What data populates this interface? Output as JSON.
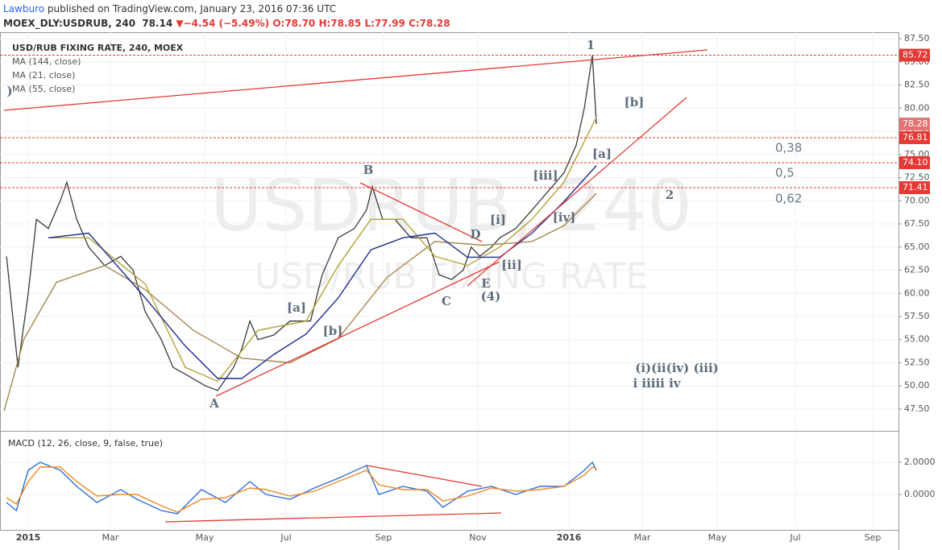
{
  "header": {
    "author": "Lawburo",
    "published": "published on TradingView.com, January 23, 2016 07:36 UTC",
    "symbol": "MOEX_DLY:USDRUB, 240",
    "last": "78.14",
    "arrow": "▼",
    "change": "−4.54 (−5.49%)",
    "ohlc": [
      "O:78.70",
      "H:78.85",
      "L:77.99",
      "C:78.28"
    ]
  },
  "chart_data": [
    {
      "type": "line",
      "title": "USD/RUB FIXING RATE, 240, MOEX",
      "watermark": [
        "USDRUB, 240",
        "USD/RUB FIXING RATE"
      ],
      "ylim": [
        45.15,
        88.2
      ],
      "yticks": [
        {
          "value": 47.5,
          "label": "47.50"
        },
        {
          "value": 50,
          "label": "50.00"
        },
        {
          "value": 52.5,
          "label": "52.50"
        },
        {
          "value": 55,
          "label": "55.00"
        },
        {
          "value": 57.5,
          "label": "57.50"
        },
        {
          "value": 60,
          "label": "60.00"
        },
        {
          "value": 62.5,
          "label": "62.50"
        },
        {
          "value": 65,
          "label": "65.00"
        },
        {
          "value": 67.5,
          "label": "67.50"
        },
        {
          "value": 70,
          "label": "70.00"
        },
        {
          "value": 72.5,
          "label": "72.50"
        },
        {
          "value": 75,
          "label": "75.00"
        },
        {
          "value": 77.5,
          "label": "77.50"
        },
        {
          "value": 80,
          "label": "80.00"
        },
        {
          "value": 82.5,
          "label": "82.50"
        },
        {
          "value": 85,
          "label": "85.00"
        },
        {
          "value": 87.5,
          "label": "87.50"
        }
      ],
      "grid": true,
      "levels": [
        85.72,
        76.81,
        {
          "value": 74.1,
          "label": "74.10"
        },
        71.41
      ],
      "level_color": "#e53935",
      "last_price": 78.28,
      "last_color": "#e57373",
      "fib_labels": [
        "0,38",
        "0,5",
        "0,62"
      ],
      "annotations": [
        "1",
        "[b]",
        "[a]",
        "[iii]",
        "[iv]",
        "2",
        "B",
        "D",
        "[i]",
        "[ii]",
        "E",
        "(4)",
        "C",
        "[a]",
        "[b]",
        "A",
        "(i)(ii(iv) (iii)",
        "i iiiii iv",
        ")"
      ],
      "series": [
        {
          "color": "#3a3a3a",
          "x": [
            -0.53,
            -0.39,
            -0.25,
            0,
            0.2,
            0.49,
            0.78,
            0.94,
            1.18,
            1.47,
            1.86,
            2.22,
            2.48,
            2.74,
            3.08,
            3.33,
            3.68,
            4.02,
            4.32,
            4.71,
            4.91,
            5.11,
            5.31,
            5.7,
            6.08,
            6.33,
            6.5,
            6.74,
            7.07,
            7.4,
            7.65,
            7.77,
            7.98,
            8.24,
            8.58,
            8.92,
            9.18,
            9.44,
            9.69,
            9.86,
            10.04,
            10.3,
            10.48,
            10.83,
            11.19,
            11.54,
            11.89,
            12.2,
            12.42,
            12.64,
            12.75
          ],
          "values": [
            64,
            58,
            52,
            60,
            68,
            67,
            70,
            72,
            68,
            65,
            63,
            64,
            62.5,
            58,
            55,
            52,
            51,
            50,
            49.5,
            52,
            54,
            57,
            55,
            55.5,
            57,
            57,
            57,
            62,
            66,
            67,
            69,
            71.5,
            68,
            68,
            66,
            66,
            62,
            61.5,
            62.5,
            65,
            64,
            65,
            66,
            67,
            69,
            71,
            73,
            76,
            80,
            85.7,
            78.3
          ]
        },
        {
          "name": "MA (144, close)",
          "color": "#a8894f",
          "x": [
            -0.59,
            -0.1,
            0.69,
            1.86,
            2.74,
            3.76,
            4.91,
            6.08,
            7.07,
            8.07,
            9.09,
            10.12,
            11.19,
            11.89,
            12.75
          ],
          "values": [
            47.3,
            55.1,
            61.2,
            63,
            60.4,
            56,
            53,
            52.5,
            55.1,
            61.7,
            65.6,
            65.2,
            65.6,
            67.3,
            70.8
          ]
        },
        {
          "name": "MA (21, close)",
          "color": "#b3a338",
          "x": [
            0.49,
            1.47,
            2.74,
            3.59,
            4.32,
            5.31,
            6.41,
            7.07,
            7.74,
            8.41,
            9.09,
            9.78,
            10.48,
            11.19,
            11.89,
            12.75
          ],
          "values": [
            66,
            66,
            61,
            52,
            50.5,
            56,
            57,
            63,
            68,
            68,
            64,
            63,
            65,
            68,
            72,
            79
          ]
        },
        {
          "name": "MA (55, close)",
          "color": "#1f2d8f",
          "x": [
            0.49,
            1.47,
            2.74,
            3.59,
            4.32,
            4.91,
            5.7,
            6.41,
            7.07,
            7.74,
            8.41,
            9.09,
            9.78,
            10.48,
            11.19,
            11.89,
            12.75
          ],
          "values": [
            66,
            66.5,
            59.5,
            54.3,
            50.8,
            50.8,
            53.4,
            55.6,
            59.5,
            64.7,
            66,
            66.5,
            63.9,
            63.9,
            66.5,
            69.9,
            73.8
          ]
        }
      ]
    },
    {
      "type": "line",
      "title": "MACD (12, 26, close, 9, false, true)",
      "ylim": [
        -2.05,
        3.85
      ],
      "yticks": [
        {
          "value": 2,
          "label": "2.0000"
        },
        {
          "value": 0,
          "label": "0.0000"
        }
      ],
      "xlim": [
        -0.69,
        20.67
      ],
      "xticks": [
        {
          "value": 0,
          "label": "2015"
        },
        {
          "value": 2,
          "label": "Mar"
        },
        {
          "value": 4,
          "label": "May"
        },
        {
          "value": 6,
          "label": "Jul"
        },
        {
          "value": 8,
          "label": "Sep"
        },
        {
          "value": 10,
          "label": "Nov"
        },
        {
          "value": 12,
          "label": "2016"
        },
        {
          "value": 14,
          "label": "Mar"
        },
        {
          "value": 16,
          "label": "May"
        },
        {
          "value": 18,
          "label": "Jul"
        },
        {
          "value": 20,
          "label": "Sep"
        }
      ],
      "grid": true,
      "series": [
        {
          "color": "#2f6fd6",
          "x": [
            -0.53,
            -0.29,
            0,
            0.29,
            0.78,
            1.18,
            1.67,
            2.22,
            2.56,
            3.08,
            3.42,
            3.93,
            4.51,
            5.11,
            5.5,
            6.08,
            6.58,
            7.07,
            7.65,
            7.9,
            8.41,
            8.92,
            9.26,
            9.78,
            10.3,
            10.83,
            11.36,
            11.89,
            12.42,
            12.64,
            12.75
          ],
          "values": [
            -0.5,
            -1,
            1.5,
            2,
            1.5,
            0.5,
            -0.5,
            0.3,
            -0.3,
            -1,
            -1.2,
            0.3,
            -0.5,
            0.8,
            0,
            -0.3,
            0.4,
            1,
            1.8,
            0,
            0.5,
            0.2,
            -0.8,
            0.2,
            0.5,
            0,
            0.5,
            0.5,
            1.5,
            2,
            1.5
          ]
        },
        {
          "color": "#f08a24",
          "x": [
            -0.53,
            -0.29,
            0,
            0.29,
            0.78,
            1.18,
            1.67,
            2.22,
            2.56,
            3.08,
            3.42,
            3.93,
            4.51,
            5.11,
            5.5,
            6.08,
            6.58,
            7.07,
            7.65,
            7.9,
            8.41,
            8.92,
            9.26,
            9.78,
            10.3,
            10.83,
            11.36,
            11.89,
            12.42,
            12.64,
            12.75
          ],
          "values": [
            -0.2,
            -0.6,
            0.8,
            1.7,
            1.7,
            0.8,
            -0.1,
            0,
            0,
            -0.7,
            -1.1,
            -0.3,
            -0.2,
            0.4,
            0.3,
            -0.1,
            0.2,
            0.8,
            1.5,
            0.6,
            0.3,
            0.3,
            -0.4,
            -0.1,
            0.4,
            0.2,
            0.3,
            0.5,
            1.2,
            1.7,
            1.6
          ]
        }
      ]
    }
  ]
}
